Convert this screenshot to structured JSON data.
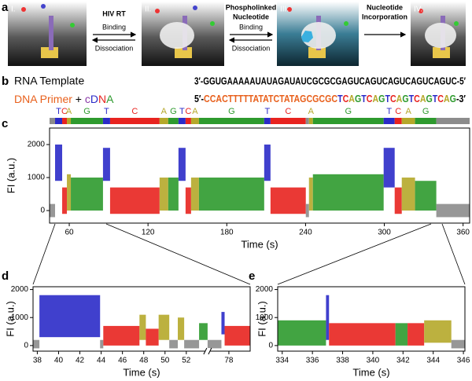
{
  "figure": {
    "panel_labels": [
      "a",
      "b",
      "c",
      "d",
      "e"
    ],
    "a": {
      "steps": [
        "I.",
        "II.",
        "III.",
        "IV."
      ],
      "arrows": [
        {
          "title": [
            "HIV RT"
          ],
          "forward": "Binding",
          "reverse": "Dissociation"
        },
        {
          "title": [
            "Phospholinked",
            "Nucleotide"
          ],
          "forward": "Binding",
          "reverse": "Dissociation"
        },
        {
          "title": [
            "Nucleotide",
            "Incorporation"
          ]
        }
      ]
    },
    "b": {
      "rna": {
        "label": "RNA Template",
        "sequence": "3′-GGUGAAAAAUAUAGAUAUCGCGCGAGUCAGUCAGUCAGUCAGUC-5′"
      },
      "dna": {
        "label": [
          {
            "text": "DNA Primer",
            "color": "#e8601c"
          },
          {
            "text": " + ",
            "color": "#000000"
          },
          {
            "text": "c",
            "color": "#8a3aa8"
          },
          {
            "text": "D",
            "color": "#2b2bc8"
          },
          {
            "text": "N",
            "color": "#e8231f"
          },
          {
            "text": "A",
            "color": "#2e9a2e"
          }
        ],
        "sequence": [
          {
            "text": "5′-",
            "color": "#000000"
          },
          {
            "text": "CCACTTTTTATATCTATAGCGCGC",
            "color": "#e8601c"
          },
          {
            "text": "T",
            "color": "#2b2bc8"
          },
          {
            "text": "C",
            "color": "#e8231f"
          },
          {
            "text": "A",
            "color": "#b5a82a"
          },
          {
            "text": "G",
            "color": "#2e9a2e"
          },
          {
            "text": "T",
            "color": "#2b2bc8"
          },
          {
            "text": "C",
            "color": "#e8231f"
          },
          {
            "text": "A",
            "color": "#b5a82a"
          },
          {
            "text": "G",
            "color": "#2e9a2e"
          },
          {
            "text": "T",
            "color": "#2b2bc8"
          },
          {
            "text": "C",
            "color": "#e8231f"
          },
          {
            "text": "A",
            "color": "#b5a82a"
          },
          {
            "text": "G",
            "color": "#2e9a2e"
          },
          {
            "text": "T",
            "color": "#2b2bc8"
          },
          {
            "text": "C",
            "color": "#e8231f"
          },
          {
            "text": "A",
            "color": "#b5a82a"
          },
          {
            "text": "G",
            "color": "#2e9a2e"
          },
          {
            "text": "T",
            "color": "#2b2bc8"
          },
          {
            "text": "C",
            "color": "#e8231f"
          },
          {
            "text": "A",
            "color": "#b5a82a"
          },
          {
            "text": "G",
            "color": "#2e9a2e"
          },
          {
            "text": "-3′",
            "color": "#000000"
          }
        ]
      }
    }
  },
  "chart_data": [
    {
      "type": "timetrace",
      "xlabel": "Time (s)",
      "ylabel": "FI (a.u.)",
      "xlim": [
        45,
        365
      ],
      "ylim": [
        -380,
        2500
      ],
      "xticks": [
        60,
        120,
        180,
        240,
        300,
        360
      ],
      "yticks": [
        0,
        1000,
        2000
      ],
      "sequence_bar": true,
      "segments": [
        {
          "label": null,
          "color": "#8c8c8c",
          "start": 45,
          "end": 49.2,
          "low": -200,
          "high": 200
        },
        {
          "label": "T",
          "color": "#2b2bc8",
          "start": 49.2,
          "end": 54.6,
          "low": 900,
          "high": 2000
        },
        {
          "label": "C",
          "color": "#e8231f",
          "start": 54.6,
          "end": 58.2,
          "low": -100,
          "high": 700
        },
        {
          "label": "A",
          "color": "#b5a82a",
          "start": 58.2,
          "end": 61.2,
          "low": 0,
          "high": 1100
        },
        {
          "label": "G",
          "color": "#2e9a2e",
          "start": 61.2,
          "end": 85.7,
          "low": 0,
          "high": 1000
        },
        {
          "label": "T",
          "color": "#2b2bc8",
          "start": 85.7,
          "end": 91.1,
          "low": 900,
          "high": 1900
        },
        {
          "label": "C",
          "color": "#e8231f",
          "start": 91.1,
          "end": 128.8,
          "low": -100,
          "high": 700
        },
        {
          "label": "A",
          "color": "#b5a82a",
          "start": 128.8,
          "end": 135.4,
          "low": 0,
          "high": 1000
        },
        {
          "label": "G",
          "color": "#2e9a2e",
          "start": 135.4,
          "end": 143.2,
          "low": 0,
          "high": 1000
        },
        {
          "label": "T",
          "color": "#2b2bc8",
          "start": 143.2,
          "end": 148.6,
          "low": 900,
          "high": 1900
        },
        {
          "label": "C",
          "color": "#e8231f",
          "start": 148.6,
          "end": 152.8,
          "low": -100,
          "high": 700
        },
        {
          "label": "A",
          "color": "#b5a82a",
          "start": 152.8,
          "end": 158.8,
          "low": 0,
          "high": 1000
        },
        {
          "label": "G",
          "color": "#2e9a2e",
          "start": 158.8,
          "end": 208.5,
          "low": 0,
          "high": 1000
        },
        {
          "label": "T",
          "color": "#2b2bc8",
          "start": 208.5,
          "end": 213.3,
          "low": 900,
          "high": 2000
        },
        {
          "label": "C",
          "color": "#e8231f",
          "start": 213.3,
          "end": 240.2,
          "low": -100,
          "high": 700
        },
        {
          "label": null,
          "color": "#8c8c8c",
          "start": 240.2,
          "end": 242.6,
          "low": -200,
          "high": 200
        },
        {
          "label": "A",
          "color": "#b5a82a",
          "start": 242.6,
          "end": 245.6,
          "low": 0,
          "high": 1000
        },
        {
          "label": "G",
          "color": "#2e9a2e",
          "start": 245.6,
          "end": 299.5,
          "low": 0,
          "high": 1100
        },
        {
          "label": "T",
          "color": "#2b2bc8",
          "start": 299.5,
          "end": 307.9,
          "low": 700,
          "high": 1900
        },
        {
          "label": "C",
          "color": "#e8231f",
          "start": 307.9,
          "end": 313.3,
          "low": -100,
          "high": 700
        },
        {
          "label": "A",
          "color": "#b5a82a",
          "start": 313.3,
          "end": 323.4,
          "low": 0,
          "high": 1000
        },
        {
          "label": "G",
          "color": "#2e9a2e",
          "start": 323.4,
          "end": 339.6,
          "low": 0,
          "high": 900
        },
        {
          "label": null,
          "color": "#8c8c8c",
          "start": 339.6,
          "end": 365,
          "low": -200,
          "high": 200
        }
      ]
    },
    {
      "type": "timetrace",
      "xlabel": "Time (s)",
      "ylabel": "FI (a.u.)",
      "xlim": [
        37.6,
        80
      ],
      "xbreak": [
        54,
        76
      ],
      "ylim": [
        -200,
        2100
      ],
      "xticks": [
        38,
        40,
        42,
        44,
        46,
        48,
        50,
        52,
        78
      ],
      "yticks": [
        0,
        1000,
        2000
      ],
      "segments": [
        {
          "color": "#8c8c8c",
          "start": 37.6,
          "end": 38.2,
          "low": -100,
          "high": 200
        },
        {
          "color": "#2b2bc8",
          "start": 38.2,
          "end": 43.9,
          "low": 300,
          "high": 1800
        },
        {
          "color": "#8c8c8c",
          "start": 43.9,
          "end": 44.2,
          "low": -100,
          "high": 200
        },
        {
          "color": "#e8231f",
          "start": 44.2,
          "end": 47.6,
          "low": 0,
          "high": 700
        },
        {
          "color": "#b5a82a",
          "start": 47.6,
          "end": 48.2,
          "low": 200,
          "high": 1100
        },
        {
          "color": "#e8231f",
          "start": 48.2,
          "end": 49.4,
          "low": 0,
          "high": 600
        },
        {
          "color": "#b5a82a",
          "start": 49.4,
          "end": 50.4,
          "low": 200,
          "high": 1100
        },
        {
          "color": "#8c8c8c",
          "start": 50.4,
          "end": 51.2,
          "low": -100,
          "high": 200
        },
        {
          "color": "#b5a82a",
          "start": 51.2,
          "end": 51.8,
          "low": 200,
          "high": 1000
        },
        {
          "color": "#8c8c8c",
          "start": 51.8,
          "end": 53.2,
          "low": -100,
          "high": 200
        },
        {
          "color": "#2e9a2e",
          "start": 53.2,
          "end": 54,
          "low": 200,
          "high": 800
        },
        {
          "color": "#8c8c8c",
          "start": 76,
          "end": 77.3,
          "low": -100,
          "high": 200
        },
        {
          "color": "#2b2bc8",
          "start": 77.3,
          "end": 77.6,
          "low": 400,
          "high": 1200
        },
        {
          "color": "#e8231f",
          "start": 77.6,
          "end": 80,
          "low": 0,
          "high": 700
        }
      ]
    },
    {
      "type": "timetrace",
      "xlabel": "Time (s)",
      "ylabel": "FI (a.u.)",
      "xlim": [
        333.7,
        346.1
      ],
      "ylim": [
        -200,
        2100
      ],
      "xticks": [
        334,
        336,
        338,
        340,
        342,
        344,
        346
      ],
      "yticks": [
        0,
        1000,
        2000
      ],
      "segments": [
        {
          "color": "#2e9a2e",
          "start": 333.7,
          "end": 336.9,
          "low": 0,
          "high": 900
        },
        {
          "color": "#2b2bc8",
          "start": 336.9,
          "end": 337.1,
          "low": 200,
          "high": 1800
        },
        {
          "color": "#e8231f",
          "start": 337.1,
          "end": 341.5,
          "low": 0,
          "high": 800
        },
        {
          "color": "#2e9a2e",
          "start": 341.5,
          "end": 342.3,
          "low": 0,
          "high": 800
        },
        {
          "color": "#e8231f",
          "start": 342.3,
          "end": 343.4,
          "low": 0,
          "high": 800
        },
        {
          "color": "#b5a82a",
          "start": 343.4,
          "end": 345.2,
          "low": 100,
          "high": 900
        },
        {
          "color": "#8c8c8c",
          "start": 345.2,
          "end": 346.1,
          "low": -100,
          "high": 200
        }
      ]
    }
  ]
}
